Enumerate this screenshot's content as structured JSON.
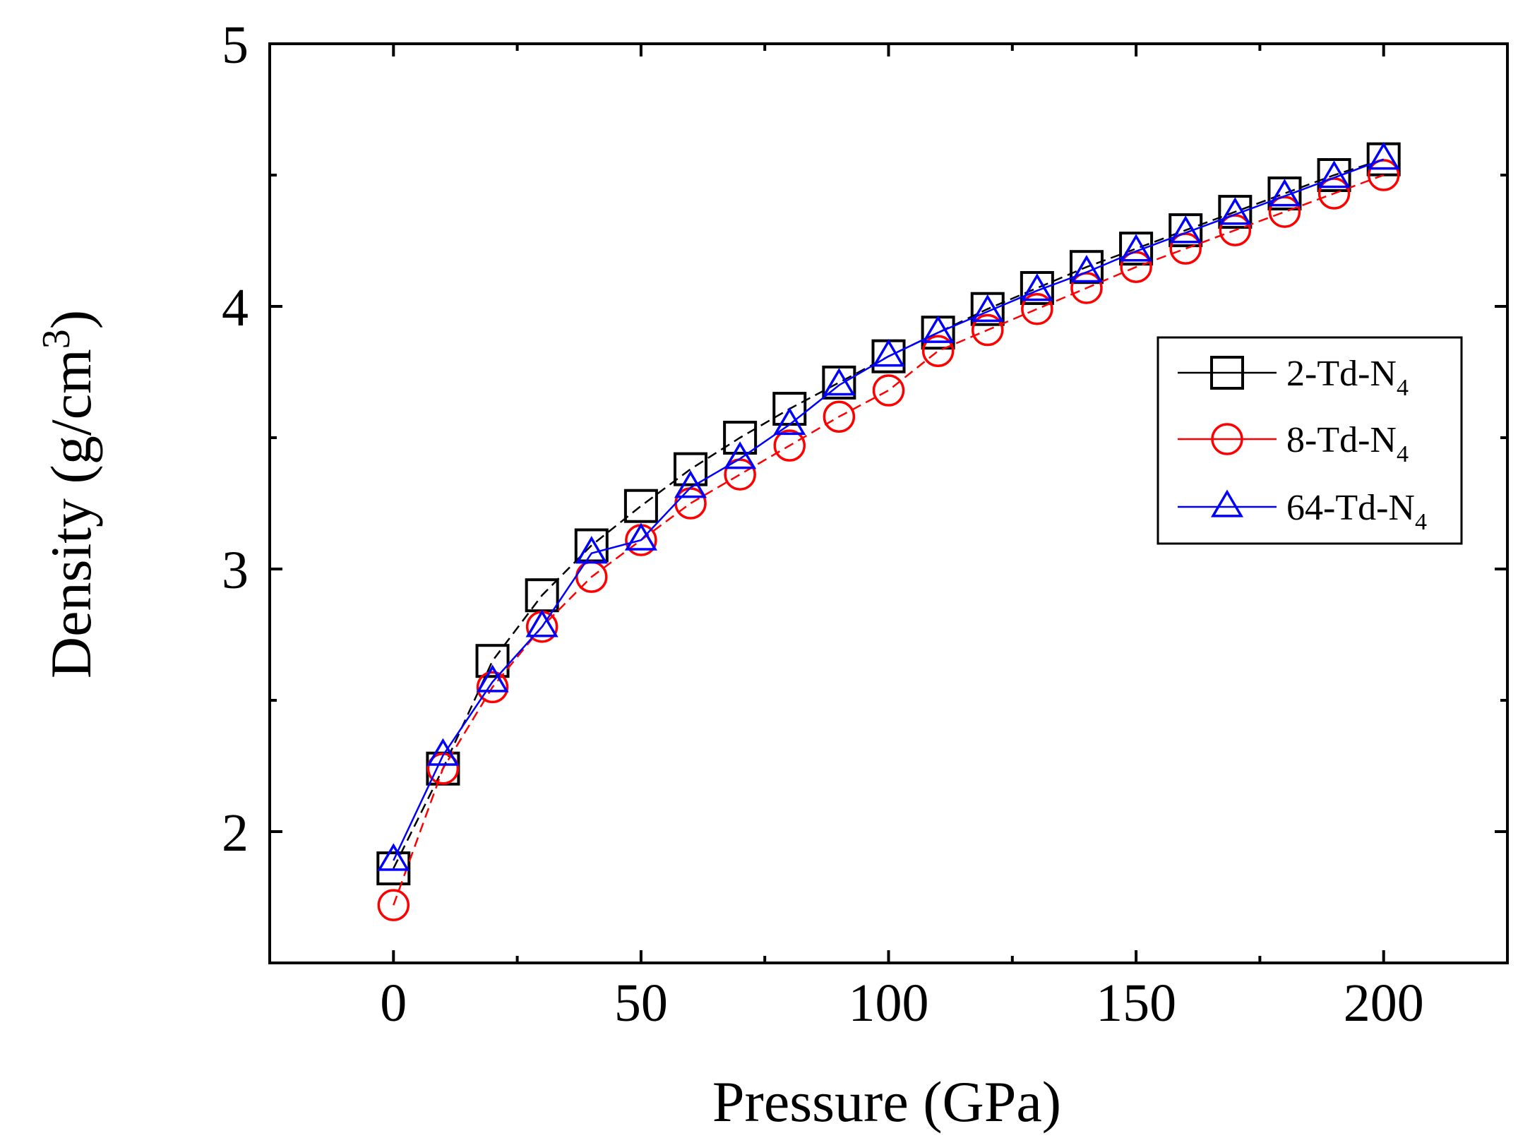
{
  "chart_data": {
    "type": "line",
    "title": "",
    "xlabel": "Pressure (GPa)",
    "ylabel_main": "Density (g/cm",
    "ylabel_sup": "3",
    "ylabel_close": ")",
    "xlim": [
      -25,
      225
    ],
    "ylim": [
      1.5,
      5
    ],
    "x_ticks": [
      0,
      50,
      100,
      150,
      200
    ],
    "x_tick_labels": [
      "0",
      "50",
      "100",
      "150",
      "200"
    ],
    "x_minor_ticks": [
      25,
      75,
      125,
      175
    ],
    "y_ticks": [
      2,
      3,
      4,
      5
    ],
    "y_tick_labels": [
      "2",
      "3",
      "4",
      "5"
    ],
    "y_minor_ticks": [
      2.5,
      3.5,
      4.5
    ],
    "legend_position": "right",
    "x": [
      0,
      10,
      20,
      30,
      40,
      50,
      60,
      70,
      80,
      90,
      100,
      110,
      120,
      130,
      140,
      150,
      160,
      170,
      180,
      190,
      200
    ],
    "series": [
      {
        "name": "2-Td-N",
        "name_sub": "4",
        "marker": "square",
        "line_style": "dashed",
        "color": "#000000",
        "values": [
          1.86,
          2.24,
          2.65,
          2.9,
          3.09,
          3.24,
          3.38,
          3.5,
          3.61,
          3.71,
          3.81,
          3.9,
          3.99,
          4.07,
          4.15,
          4.22,
          4.29,
          4.36,
          4.43,
          4.5,
          4.56
        ]
      },
      {
        "name": "8-Td-N",
        "name_sub": "4",
        "marker": "circle",
        "line_style": "dashed",
        "color": "#ff0000",
        "values": [
          1.72,
          2.24,
          2.55,
          2.78,
          2.97,
          3.11,
          3.25,
          3.36,
          3.47,
          3.58,
          3.68,
          3.83,
          3.91,
          3.99,
          4.07,
          4.15,
          4.22,
          4.29,
          4.36,
          4.43,
          4.5
        ]
      },
      {
        "name": "64-Td-N",
        "name_sub": "4",
        "marker": "triangle",
        "line_style": "solid",
        "color": "#0000ff",
        "values": [
          1.89,
          2.29,
          2.57,
          2.78,
          3.06,
          3.11,
          3.31,
          3.42,
          3.55,
          3.7,
          3.81,
          3.9,
          3.98,
          4.06,
          4.13,
          4.21,
          4.28,
          4.35,
          4.42,
          4.49,
          4.56
        ]
      }
    ]
  }
}
